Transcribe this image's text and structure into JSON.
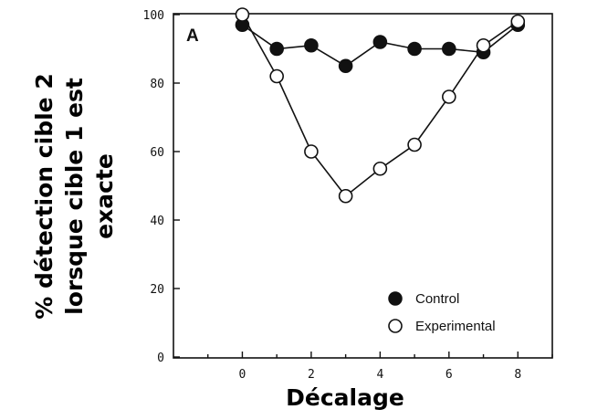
{
  "chart_data": {
    "type": "line",
    "panel_label": "A",
    "xlabel": "Décalage",
    "ylabel_lines": [
      "% détection cible 2",
      "lorsque cible 1 est",
      "exacte"
    ],
    "xlim": [
      -2,
      9
    ],
    "ylim": [
      0,
      100
    ],
    "xticks": [
      0,
      2,
      4,
      6,
      8
    ],
    "yticks": [
      0,
      20,
      40,
      60,
      80,
      100
    ],
    "grid": false,
    "legend_position": "bottom-right",
    "series": [
      {
        "name": "Control",
        "marker": "filled-circle",
        "x": [
          0,
          1,
          2,
          3,
          4,
          5,
          6,
          7,
          8
        ],
        "y": [
          97,
          90,
          91,
          85,
          92,
          90,
          90,
          89,
          97
        ]
      },
      {
        "name": "Experimental",
        "marker": "open-circle",
        "x": [
          0,
          1,
          2,
          3,
          4,
          5,
          6,
          7,
          8
        ],
        "y": [
          100,
          82,
          60,
          47,
          55,
          62,
          76,
          91,
          98
        ]
      }
    ]
  }
}
